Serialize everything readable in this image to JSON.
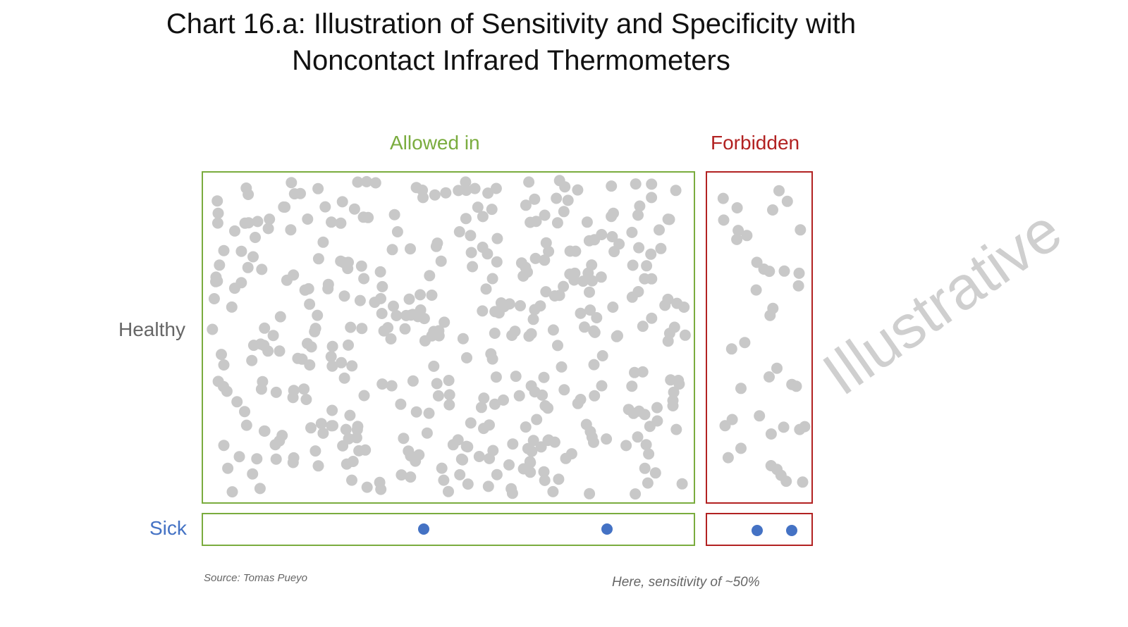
{
  "title_line1": "Chart 16.a: Illustration of Sensitivity and Specificity with",
  "title_line2": "Noncontact Infrared Thermometers",
  "source": "Source: Tomas Pueyo",
  "footnote": "Here, sensitivity of ~50%",
  "watermark": "Illustrative",
  "colors": {
    "allowed": "#7aac3e",
    "forbidden": "#b22222",
    "healthy_dot": "#c8c8c8",
    "sick_dot": "#4472c4",
    "sick_label": "#4472c4",
    "healthy_label": "#666666"
  },
  "chart_data": {
    "type": "scatter",
    "columns": [
      "Allowed in",
      "Forbidden"
    ],
    "rows": [
      "Healthy",
      "Sick"
    ],
    "counts": {
      "Healthy": {
        "Allowed in": 420,
        "Forbidden": 40
      },
      "Sick": {
        "Allowed in": 2,
        "Forbidden": 2
      }
    },
    "grid": false
  }
}
